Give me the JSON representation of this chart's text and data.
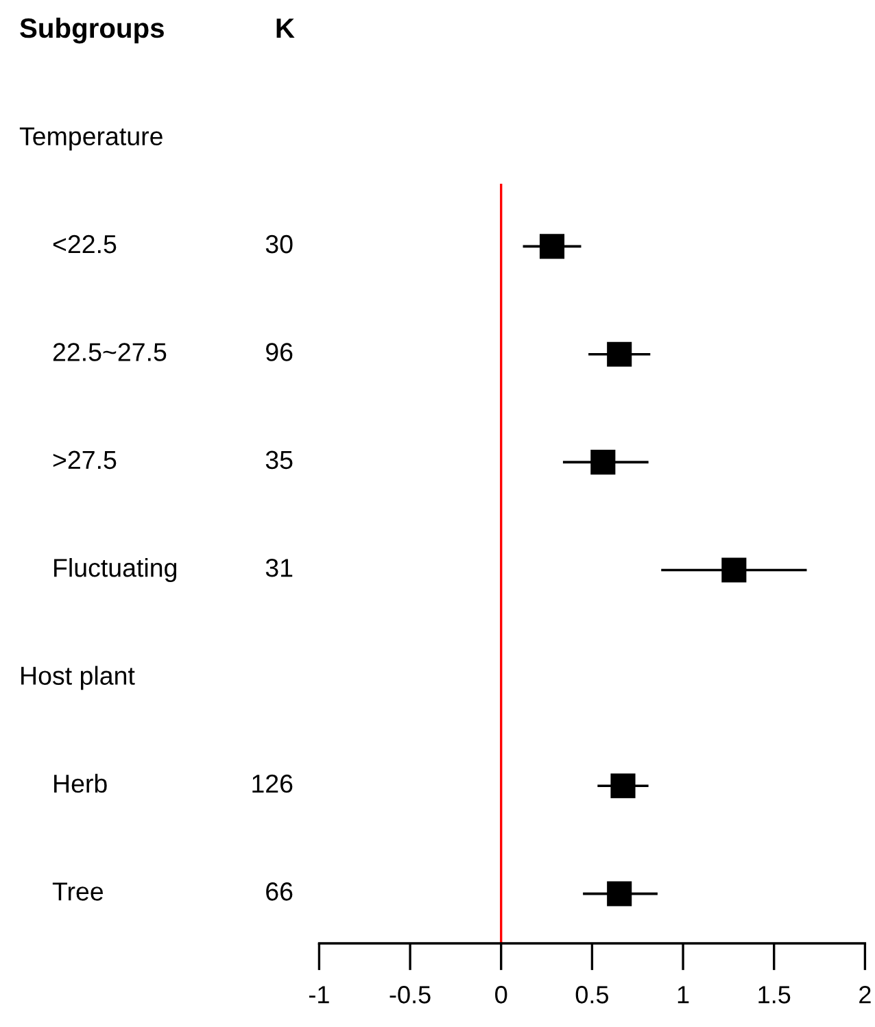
{
  "chart_data": {
    "type": "scatter",
    "orientation": "horizontal",
    "ylabel": "Subgroups",
    "categories": [
      null,
      "<22.5",
      "22.5~27.5",
      ">27.5",
      "Fluctuating",
      null,
      "Herb",
      "Tree"
    ],
    "values": [
      null,
      0.28,
      0.65,
      0.56,
      1.28,
      null,
      0.67,
      0.65
    ],
    "errors": [
      null,
      [
        0.12,
        0.44
      ],
      [
        0.48,
        0.82
      ],
      [
        0.34,
        0.81
      ],
      [
        0.88,
        1.68
      ],
      null,
      [
        0.53,
        0.81
      ],
      [
        0.45,
        0.86
      ]
    ],
    "color": "#000000",
    "marker": "square",
    "xlim": [
      -1,
      2
    ],
    "xticks": [
      -1,
      -0.5,
      0,
      0.5,
      1,
      1.5,
      2
    ],
    "ref_lines": [
      {
        "axis": "x",
        "value": 0,
        "color": "#ff0000"
      }
    ],
    "annotations": [
      "K",
      "Temperature",
      "Host plant",
      "30",
      "96",
      "35",
      "31",
      "126",
      "66"
    ],
    "grid": false,
    "legend": false
  }
}
